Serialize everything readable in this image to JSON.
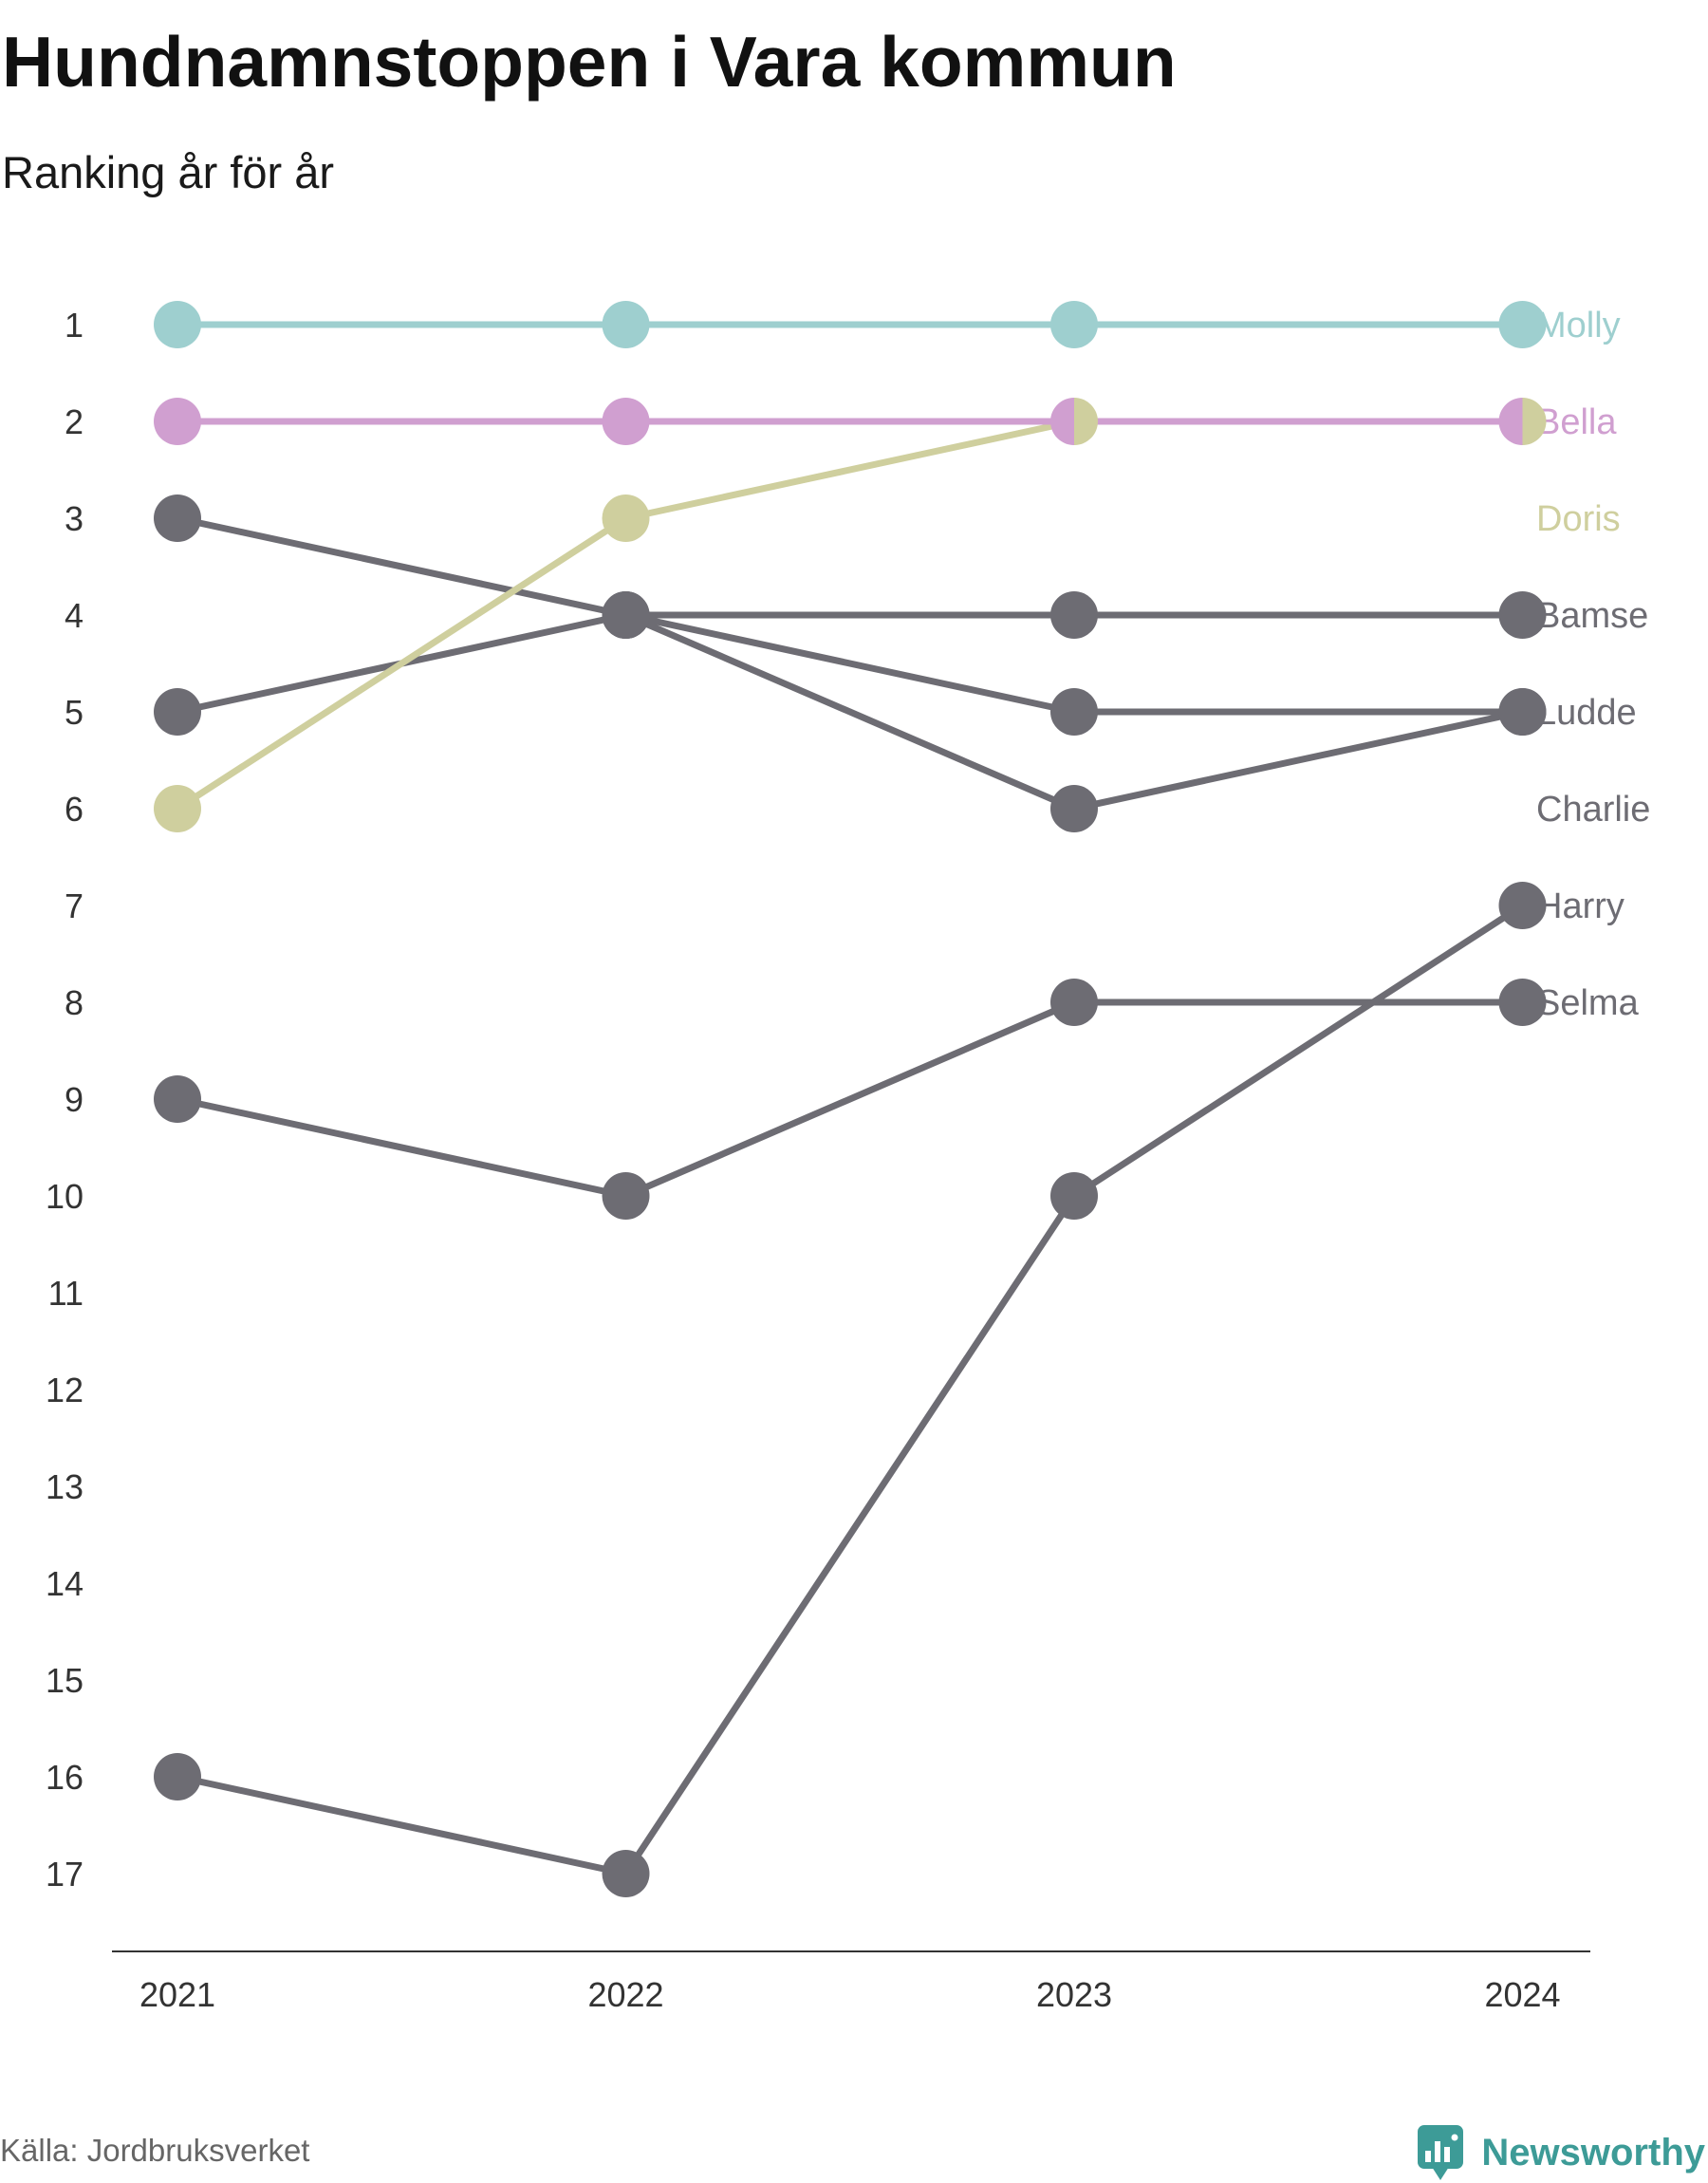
{
  "chart_data": {
    "type": "line",
    "title": "Hundnamnstoppen i Vara kommun",
    "subtitle": "Ranking år för år",
    "x": [
      "2021",
      "2022",
      "2023",
      "2024"
    ],
    "y_ticks": [
      1,
      2,
      3,
      4,
      5,
      6,
      7,
      8,
      9,
      10,
      11,
      12,
      13,
      14,
      15,
      16,
      17
    ],
    "ylim": [
      1,
      17
    ],
    "y_reversed": true,
    "grid": false,
    "legend": "right",
    "series": [
      {
        "name": "Molly",
        "values": [
          1,
          1,
          1,
          1
        ],
        "color": "#9ecfcf"
      },
      {
        "name": "Bella",
        "values": [
          2,
          2,
          2,
          2
        ],
        "color": "#d09fd0"
      },
      {
        "name": "Doris",
        "values": [
          6,
          3,
          2,
          2
        ],
        "color": "#cfcf9e"
      },
      {
        "name": "Bamse",
        "values": [
          5,
          4,
          4,
          4
        ],
        "color": "#6d6c73"
      },
      {
        "name": "Ludde",
        "values": [
          3,
          4,
          5,
          5
        ],
        "color": "#6d6c73"
      },
      {
        "name": "Charlie",
        "values": [
          null,
          4,
          6,
          5
        ],
        "color": "#6d6c73"
      },
      {
        "name": "Harry",
        "values": [
          16,
          17,
          10,
          7
        ],
        "color": "#6d6c73"
      },
      {
        "name": "Selma",
        "values": [
          9,
          10,
          8,
          8
        ],
        "color": "#6d6c73"
      }
    ]
  },
  "footer": {
    "source": "Källa: Jordbruksverket",
    "brand": "Newsworthy",
    "brand_color": "#3d9b97"
  }
}
